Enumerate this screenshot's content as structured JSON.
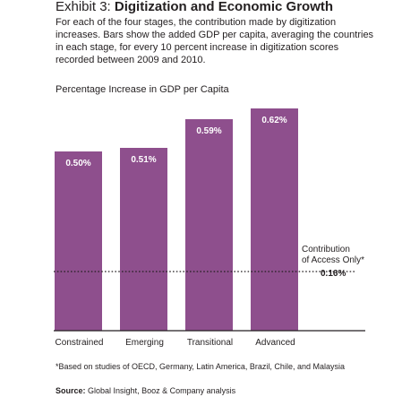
{
  "header": {
    "exhibit": "Exhibit 3:",
    "title": "Digitization and Economic Growth",
    "subtitle": "For each of the four stages, the contribution made by digitization increases. Bars show the added GDP per capita, averaging the countries in each stage, for every 10 percent increase in digitization scores recorded between 2009 and 2010."
  },
  "chart_data": {
    "type": "bar",
    "categories": [
      "Constrained",
      "Emerging",
      "Transitional",
      "Advanced"
    ],
    "values": [
      0.5,
      0.51,
      0.59,
      0.62
    ],
    "data_labels": [
      "0.50%",
      "0.51%",
      "0.59%",
      "0.62%"
    ],
    "ylabel": "Percentage Increase in GDP per Capita",
    "ylim": [
      0,
      0.62
    ],
    "grid": false,
    "colors": {
      "bar": "#8e4f8d",
      "bar_label": "#ffffff"
    },
    "reference_line": {
      "value": 0.16,
      "label_line1": "Contribution",
      "label_line2": "of Access Only*",
      "value_label": "0.16%",
      "style": "dotted"
    }
  },
  "footnote": "*Based on studies of OECD, Germany, Latin America, Brazil, Chile, and Malaysia",
  "source": {
    "label": "Source:",
    "text": "Global Insight, Booz & Company analysis"
  }
}
